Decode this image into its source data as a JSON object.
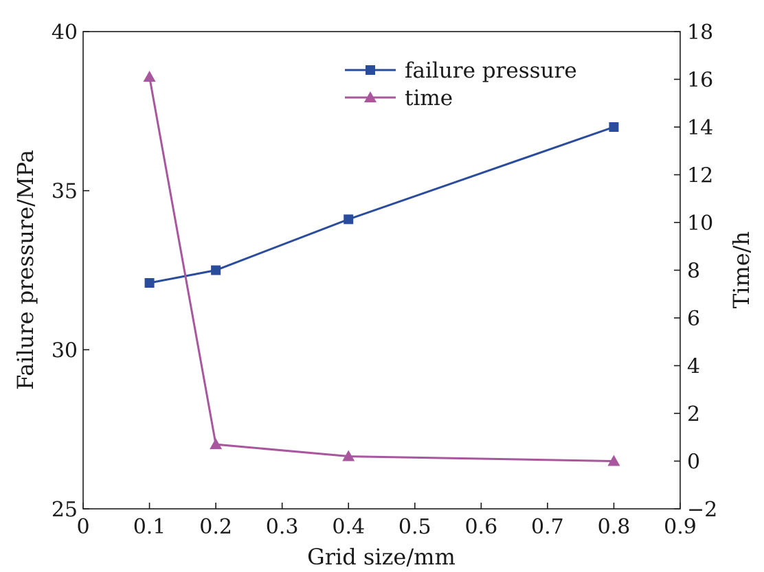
{
  "chart_data": {
    "type": "line",
    "xlabel": "Grid size/mm",
    "ylabel_left": "Failure pressure/MPa",
    "ylabel_right": "Time/h",
    "xlim": [
      0,
      0.9
    ],
    "x_ticks": [
      "0",
      "0.1",
      "0.2",
      "0.3",
      "0.4",
      "0.5",
      "0.6",
      "0.7",
      "0.8",
      "0.9"
    ],
    "ylim_left": [
      25,
      40
    ],
    "y_left_ticks": [
      "25",
      "30",
      "35",
      "40"
    ],
    "ylim_right": [
      -2,
      18
    ],
    "y_right_ticks": [
      "−2",
      "0",
      "2",
      "4",
      "6",
      "8",
      "10",
      "12",
      "14",
      "16",
      "18"
    ],
    "grid": false,
    "legend_position": "top-right",
    "series": [
      {
        "name": "failure pressure",
        "axis": "left",
        "marker": "square",
        "color": "#2a4c9c",
        "x": [
          0.1,
          0.2,
          0.4,
          0.8
        ],
        "y": [
          32.1,
          32.5,
          34.1,
          37.0
        ]
      },
      {
        "name": "time",
        "axis": "right",
        "marker": "triangle",
        "color": "#a8569e",
        "x": [
          0.1,
          0.2,
          0.4,
          0.8
        ],
        "y": [
          16.1,
          0.7,
          0.2,
          0.0
        ]
      }
    ]
  }
}
